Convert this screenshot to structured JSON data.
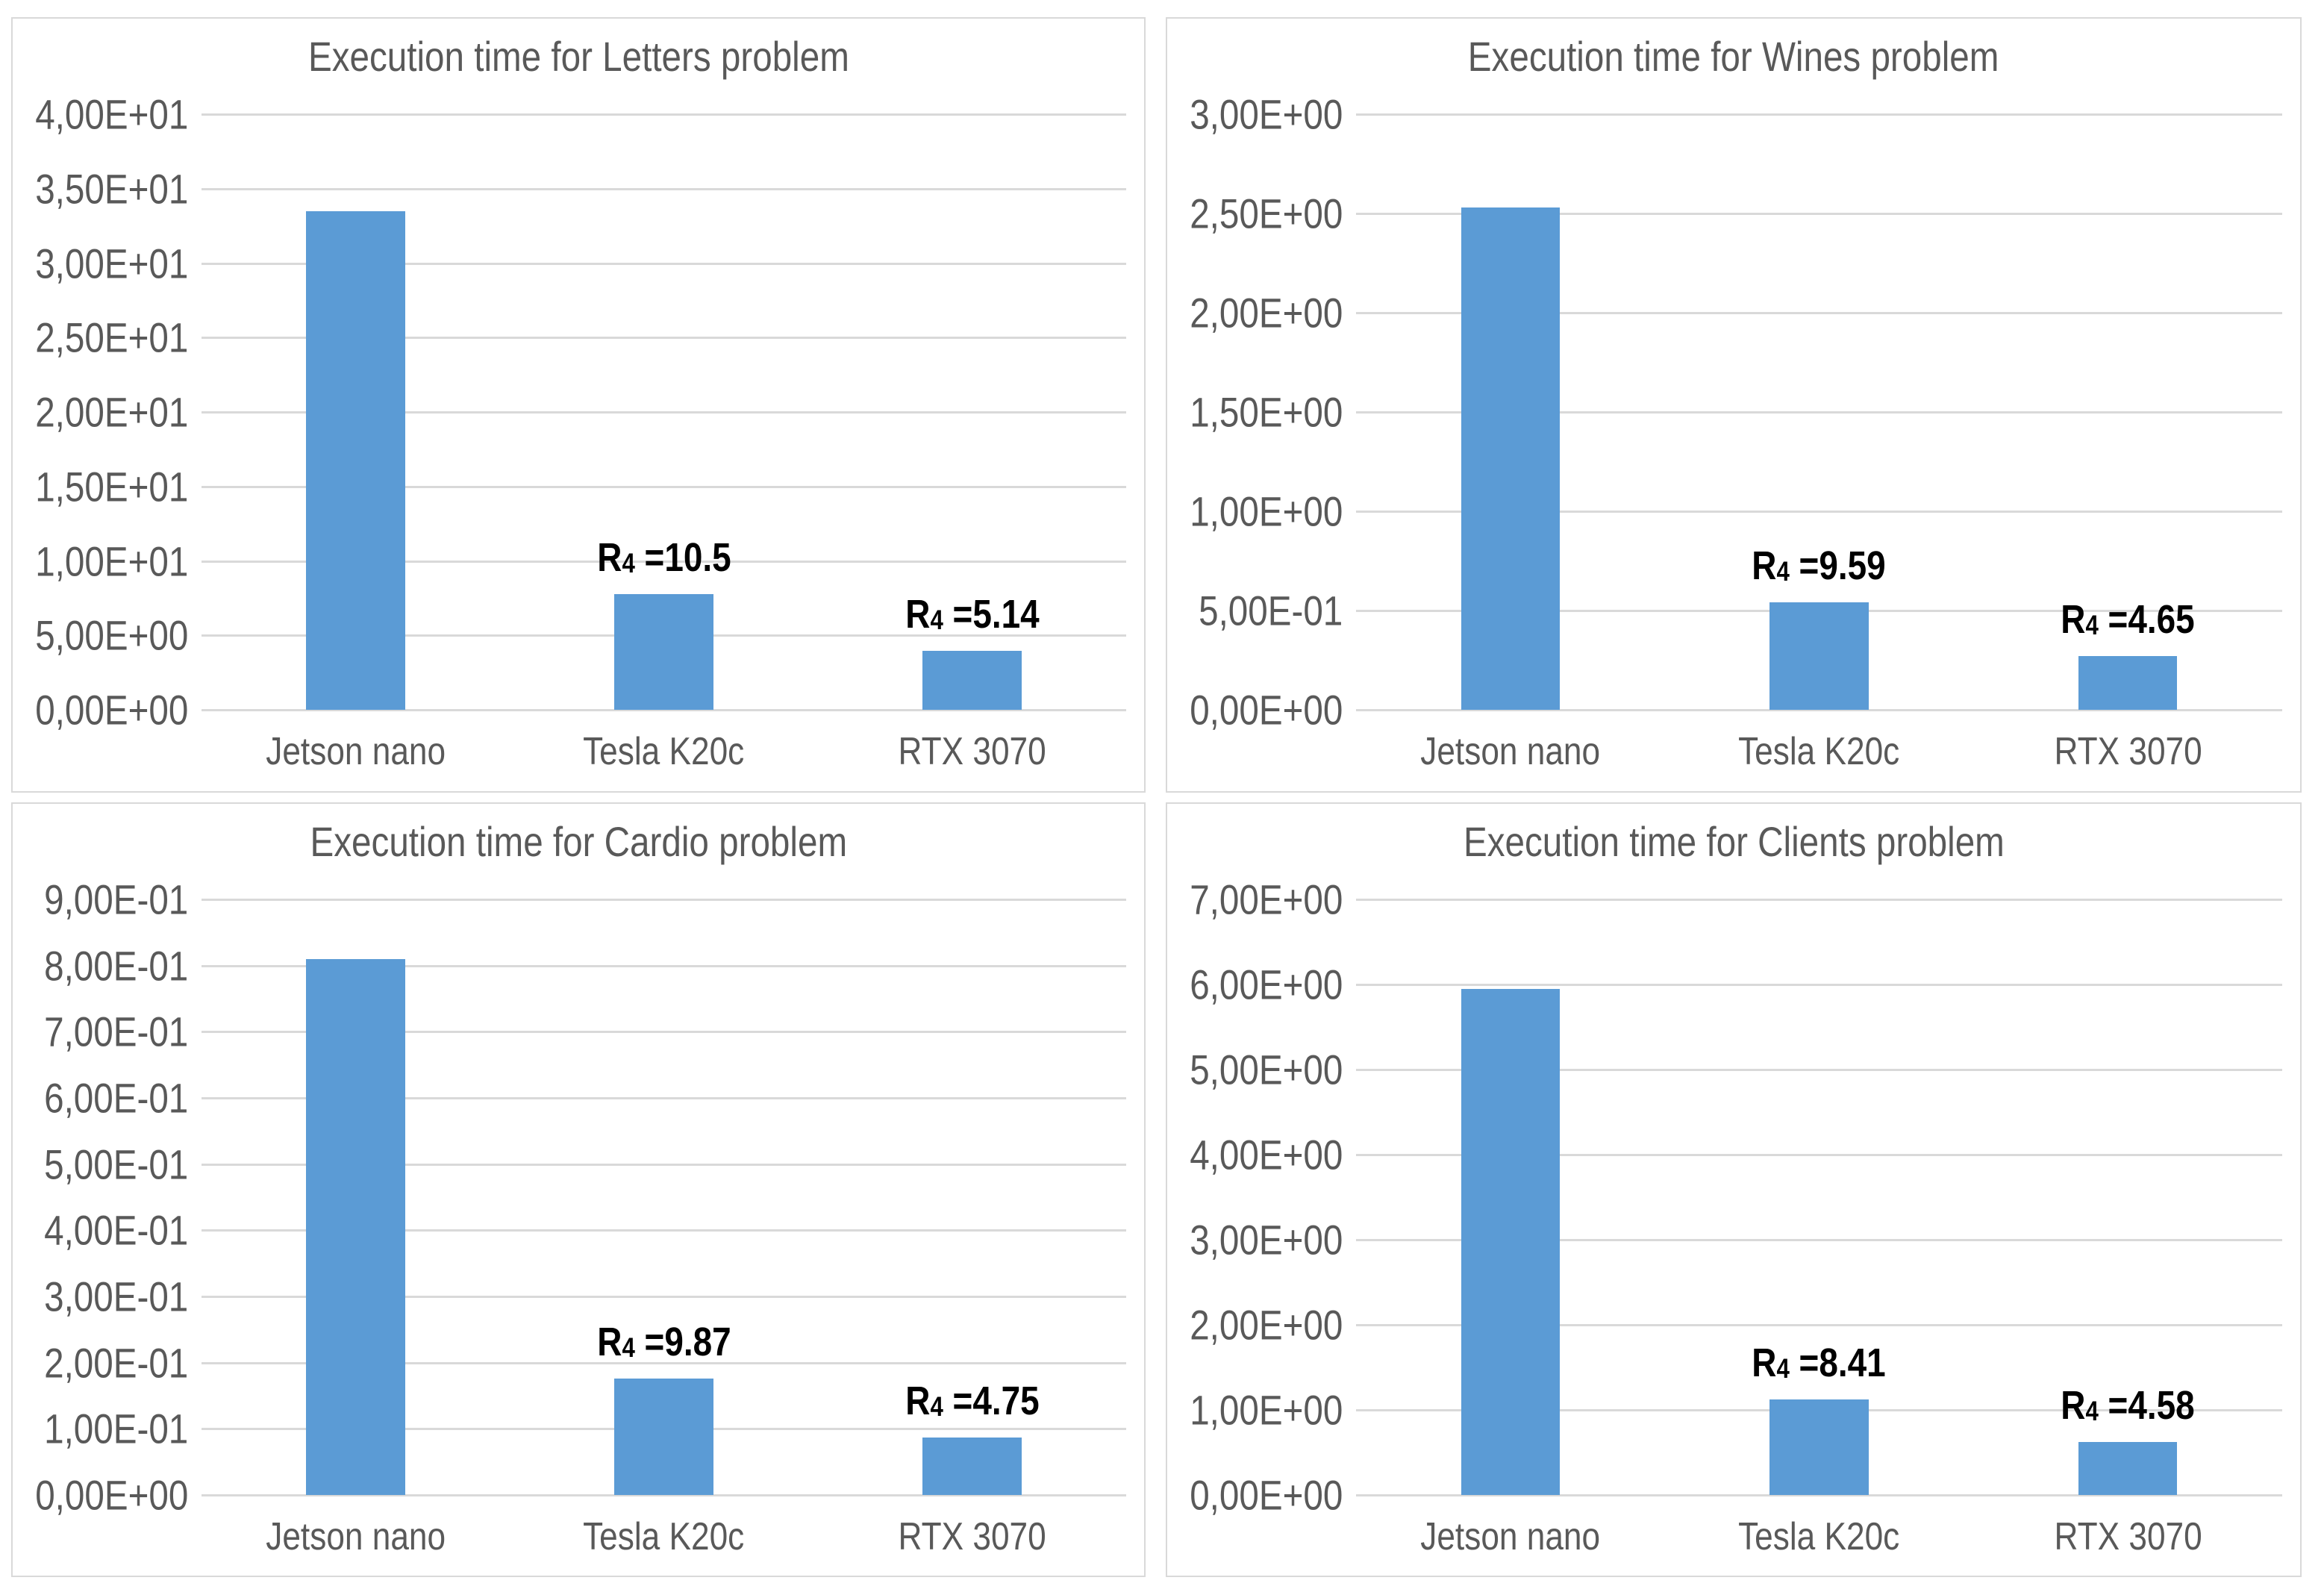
{
  "colors": {
    "bar": "#5B9BD5",
    "gridline": "#D9D9D9",
    "panel_border": "#D9D9D9",
    "axis_text": "#595959",
    "title_text": "#595959",
    "annotation_text": "#000000",
    "background": "#FFFFFF"
  },
  "chart_data": [
    {
      "type": "bar",
      "title": "Execution time for Letters problem",
      "categories": [
        "Jetson nano",
        "Tesla K20c",
        "RTX 3070"
      ],
      "values": [
        33.5,
        7.75,
        3.95
      ],
      "xlabel": "",
      "ylabel": "",
      "ylim": [
        0,
        40
      ],
      "grid": true,
      "legend": false,
      "yticks": [
        {
          "value": 40,
          "label": "4,00E+01"
        },
        {
          "value": 35,
          "label": "3,50E+01"
        },
        {
          "value": 30,
          "label": "3,00E+01"
        },
        {
          "value": 25,
          "label": "2,50E+01"
        },
        {
          "value": 20,
          "label": "2,00E+01"
        },
        {
          "value": 15,
          "label": "1,50E+01"
        },
        {
          "value": 10,
          "label": "1,00E+01"
        },
        {
          "value": 5,
          "label": "5,00E+00"
        },
        {
          "value": 0,
          "label": "0,00E+00"
        }
      ],
      "annotations": [
        {
          "category": "Tesla K20c",
          "base": "R",
          "sub": "4",
          "rest": " =10.5",
          "text": "R4 =10.5"
        },
        {
          "category": "RTX 3070",
          "base": "R",
          "sub": "4",
          "rest": " =5.14",
          "text": "R4 =5.14"
        }
      ]
    },
    {
      "type": "bar",
      "title": "Execution time for Wines problem",
      "categories": [
        "Jetson nano",
        "Tesla K20c",
        "RTX 3070"
      ],
      "values": [
        2.53,
        0.54,
        0.27
      ],
      "xlabel": "",
      "ylabel": "",
      "ylim": [
        0,
        3
      ],
      "grid": true,
      "legend": false,
      "yticks": [
        {
          "value": 3.0,
          "label": "3,00E+00"
        },
        {
          "value": 2.5,
          "label": "2,50E+00"
        },
        {
          "value": 2.0,
          "label": "2,00E+00"
        },
        {
          "value": 1.5,
          "label": "1,50E+00"
        },
        {
          "value": 1.0,
          "label": "1,00E+00"
        },
        {
          "value": 0.5,
          "label": "5,00E-01"
        },
        {
          "value": 0,
          "label": "0,00E+00"
        }
      ],
      "annotations": [
        {
          "category": "Tesla K20c",
          "base": "R",
          "sub": "4",
          "rest": " =9.59",
          "text": "R4 =9.59"
        },
        {
          "category": "RTX 3070",
          "base": "R",
          "sub": "4",
          "rest": " =4.65",
          "text": "R4 =4.65"
        }
      ]
    },
    {
      "type": "bar",
      "title": "Execution time for Cardio problem",
      "categories": [
        "Jetson nano",
        "Tesla K20c",
        "RTX 3070"
      ],
      "values": [
        0.81,
        0.176,
        0.087
      ],
      "xlabel": "",
      "ylabel": "",
      "ylim": [
        0,
        0.9
      ],
      "grid": true,
      "legend": false,
      "yticks": [
        {
          "value": 0.9,
          "label": "9,00E-01"
        },
        {
          "value": 0.8,
          "label": "8,00E-01"
        },
        {
          "value": 0.7,
          "label": "7,00E-01"
        },
        {
          "value": 0.6,
          "label": "6,00E-01"
        },
        {
          "value": 0.5,
          "label": "5,00E-01"
        },
        {
          "value": 0.4,
          "label": "4,00E-01"
        },
        {
          "value": 0.3,
          "label": "3,00E-01"
        },
        {
          "value": 0.2,
          "label": "2,00E-01"
        },
        {
          "value": 0.1,
          "label": "1,00E-01"
        },
        {
          "value": 0,
          "label": "0,00E+00"
        }
      ],
      "annotations": [
        {
          "category": "Tesla K20c",
          "base": "R",
          "sub": "4",
          "rest": " =9.87",
          "text": "R4 =9.87"
        },
        {
          "category": "RTX 3070",
          "base": "R",
          "sub": "4",
          "rest": " =4.75",
          "text": "R4 =4.75"
        }
      ]
    },
    {
      "type": "bar",
      "title": "Execution time for Clients problem",
      "categories": [
        "Jetson nano",
        "Tesla K20c",
        "RTX 3070"
      ],
      "values": [
        5.95,
        1.12,
        0.62
      ],
      "xlabel": "",
      "ylabel": "",
      "ylim": [
        0,
        7
      ],
      "grid": true,
      "legend": false,
      "yticks": [
        {
          "value": 7,
          "label": "7,00E+00"
        },
        {
          "value": 6,
          "label": "6,00E+00"
        },
        {
          "value": 5,
          "label": "5,00E+00"
        },
        {
          "value": 4,
          "label": "4,00E+00"
        },
        {
          "value": 3,
          "label": "3,00E+00"
        },
        {
          "value": 2,
          "label": "2,00E+00"
        },
        {
          "value": 1,
          "label": "1,00E+00"
        },
        {
          "value": 0,
          "label": "0,00E+00"
        }
      ],
      "annotations": [
        {
          "category": "Tesla K20c",
          "base": "R",
          "sub": "4",
          "rest": " =8.41",
          "text": "R4 =8.41"
        },
        {
          "category": "RTX 3070",
          "base": "R",
          "sub": "4",
          "rest": " =4.58",
          "text": "R4 =4.58"
        }
      ]
    }
  ]
}
